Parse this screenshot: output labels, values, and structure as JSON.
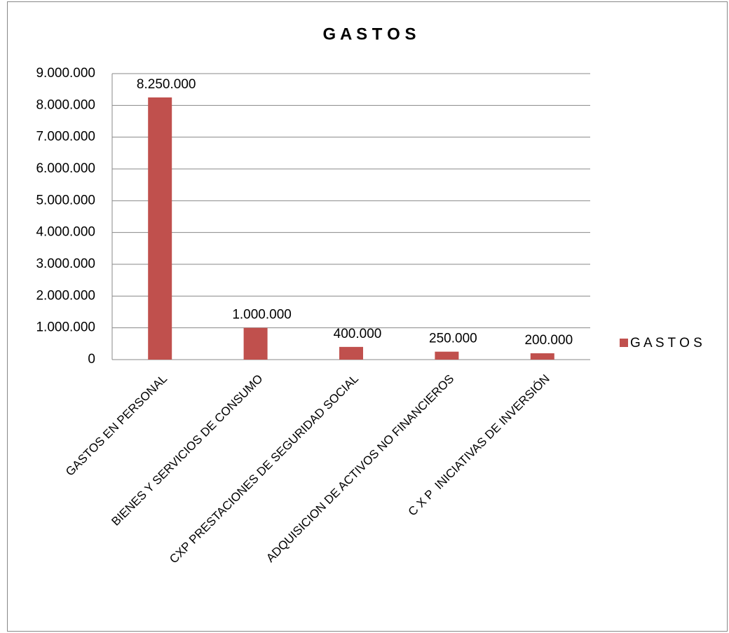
{
  "chart_data": {
    "type": "bar",
    "title": "G A S T O S",
    "categories": [
      "GASTOS EN PERSONAL",
      "BIENES Y SERVICIOS DE CONSUMO",
      "CXP PRESTACIONES DE SEGURIDAD SOCIAL",
      "ADQUISICION DE ACTIVOS NO FINANCIEROS",
      "C X P  INICIATIVAS DE INVERSIÓN"
    ],
    "series": [
      {
        "name": "G A S T O S",
        "color": "#c0504d",
        "values": [
          8250000,
          1000000,
          400000,
          250000,
          200000
        ],
        "value_labels": [
          "8.250.000",
          "1.000.000",
          "400.000",
          "250.000",
          "200.000"
        ]
      }
    ],
    "ylim": [
      0,
      9000000
    ],
    "yticks": [
      0,
      {
        "value": 1000000,
        "label": "1.000.000"
      },
      {
        "value": 2000000,
        "label": "2.000.000"
      },
      {
        "value": 3000000,
        "label": "3.000.000"
      },
      {
        "value": 4000000,
        "label": "4.000.000"
      },
      {
        "value": 5000000,
        "label": "5.000.000"
      },
      {
        "value": 6000000,
        "label": "6.000.000"
      },
      {
        "value": 7000000,
        "label": "7.000.000"
      },
      {
        "value": 8000000,
        "label": "8.000.000"
      },
      {
        "value": 9000000,
        "label": "9.000.000"
      }
    ],
    "grid": true,
    "legend": "right"
  }
}
